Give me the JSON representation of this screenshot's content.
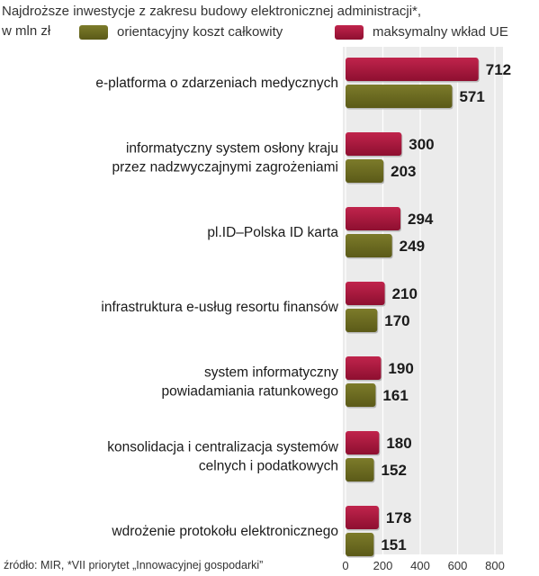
{
  "chart_data": {
    "type": "bar",
    "orientation": "horizontal",
    "title_lines": [
      "Najdroższe inwestycje z zakresu budowy elektronicznej administracji*,",
      "w mln zł"
    ],
    "legend": [
      {
        "name": "orientacyjny koszt całkowity",
        "color": "#6b6a1f"
      },
      {
        "name": "maksymalny wkład UE",
        "color": "#a3143a"
      }
    ],
    "categories": [
      {
        "lines": [
          "e-platforma o zdarzeniach medycznych"
        ]
      },
      {
        "lines": [
          "informatyczny system osłony kraju",
          "przez nadzwyczajnymi zagrożeniami"
        ]
      },
      {
        "lines": [
          "pl.ID–Polska ID karta"
        ]
      },
      {
        "lines": [
          "infrastruktura e-usług resortu finansów"
        ]
      },
      {
        "lines": [
          "system informatyczny",
          "powiadamiania ratunkowego"
        ]
      },
      {
        "lines": [
          "konsolidacja i centralizacja systemów",
          "celnych i podatkowych"
        ]
      },
      {
        "lines": [
          "wdrożenie protokołu elektronicznego"
        ]
      }
    ],
    "series": [
      {
        "name": "maksymalny wkład UE",
        "color": "#a3143a",
        "values": [
          712,
          300,
          294,
          210,
          190,
          180,
          178
        ]
      },
      {
        "name": "orientacyjny koszt całkowity",
        "color": "#6b6a1f",
        "values": [
          571,
          203,
          249,
          170,
          161,
          152,
          151
        ]
      }
    ],
    "x_ticks": [
      "0",
      "200",
      "400",
      "600",
      "800"
    ],
    "xlim": [
      0,
      800
    ],
    "source": "źródło: MIR, *VII priorytet „Innowacyjnej gospodarki”"
  }
}
